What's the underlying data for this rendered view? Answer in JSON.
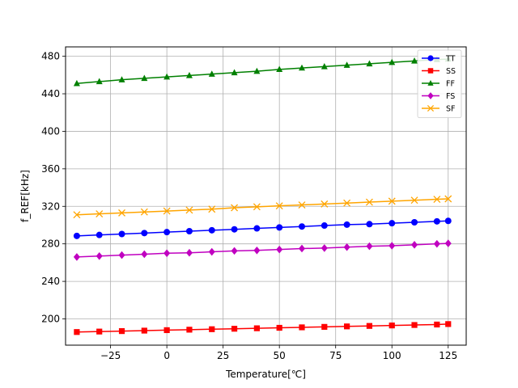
{
  "chart_data": {
    "type": "line",
    "xlabel": "Temperature[℃]",
    "ylabel": "f_REF[kHz]",
    "xlim": [
      -45,
      133
    ],
    "ylim": [
      172,
      490
    ],
    "xticks": [
      -25,
      0,
      25,
      50,
      75,
      100,
      125
    ],
    "yticks": [
      200,
      240,
      280,
      320,
      360,
      400,
      440,
      480
    ],
    "grid": true,
    "legend_position": "top-right",
    "x": [
      -40,
      -30,
      -20,
      -10,
      0,
      10,
      20,
      30,
      40,
      50,
      60,
      70,
      80,
      90,
      100,
      110,
      120,
      125
    ],
    "series": [
      {
        "name": "TT",
        "color": "#0000ff",
        "marker": "circle",
        "values": [
          288.5,
          289.5,
          290.5,
          291.5,
          292.5,
          293.5,
          294.5,
          295.5,
          296.5,
          297.5,
          298.5,
          299.5,
          300.5,
          301.0,
          302.0,
          303.0,
          304.0,
          304.5
        ]
      },
      {
        "name": "SS",
        "color": "#ff0000",
        "marker": "square",
        "values": [
          186.0,
          186.5,
          187.0,
          187.5,
          188.0,
          188.5,
          189.0,
          189.5,
          190.0,
          190.5,
          191.0,
          191.5,
          192.0,
          192.5,
          193.0,
          193.5,
          194.0,
          194.5
        ]
      },
      {
        "name": "FF",
        "color": "#008000",
        "marker": "triangle",
        "values": [
          451.0,
          453.0,
          455.0,
          456.5,
          458.0,
          459.5,
          461.0,
          462.5,
          464.0,
          466.0,
          467.5,
          469.0,
          470.5,
          472.0,
          473.5,
          475.0,
          476.5,
          477.0
        ]
      },
      {
        "name": "FS",
        "color": "#c000c0",
        "marker": "diamond",
        "values": [
          266.0,
          267.0,
          268.0,
          269.0,
          270.0,
          270.5,
          271.5,
          272.5,
          273.0,
          274.0,
          275.0,
          275.5,
          276.5,
          277.5,
          278.0,
          279.0,
          280.0,
          280.5
        ]
      },
      {
        "name": "SF",
        "color": "#ffa500",
        "marker": "x",
        "values": [
          311.0,
          312.0,
          313.0,
          314.0,
          315.0,
          316.0,
          317.0,
          318.5,
          319.5,
          320.5,
          321.5,
          322.5,
          323.5,
          324.5,
          325.5,
          326.5,
          327.5,
          328.0
        ]
      }
    ]
  }
}
